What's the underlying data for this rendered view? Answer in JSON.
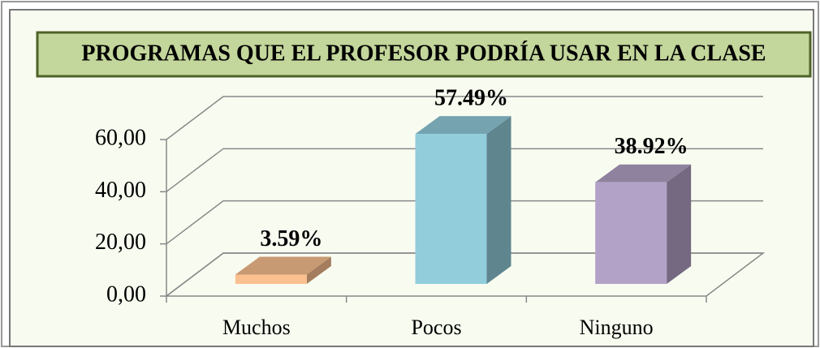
{
  "chart_data": {
    "type": "bar3d",
    "title": "PROGRAMAS QUE EL PROFESOR PODRÍA USAR EN LA CLASE",
    "categories": [
      "Muchos",
      "Pocos",
      "Ninguno"
    ],
    "values": [
      3.59,
      57.49,
      38.92
    ],
    "value_labels": [
      "3.59%",
      "57.49%",
      "38.92%"
    ],
    "colors": [
      "#FAC090",
      "#92CDDC",
      "#B3A2C7"
    ],
    "ylim": [
      0,
      60
    ],
    "yticks": [
      {
        "value": 0,
        "label": "0,00"
      },
      {
        "value": 20,
        "label": "20,00"
      },
      {
        "value": 40,
        "label": "40,00"
      },
      {
        "value": 60,
        "label": "60,00"
      }
    ],
    "grid": true
  }
}
